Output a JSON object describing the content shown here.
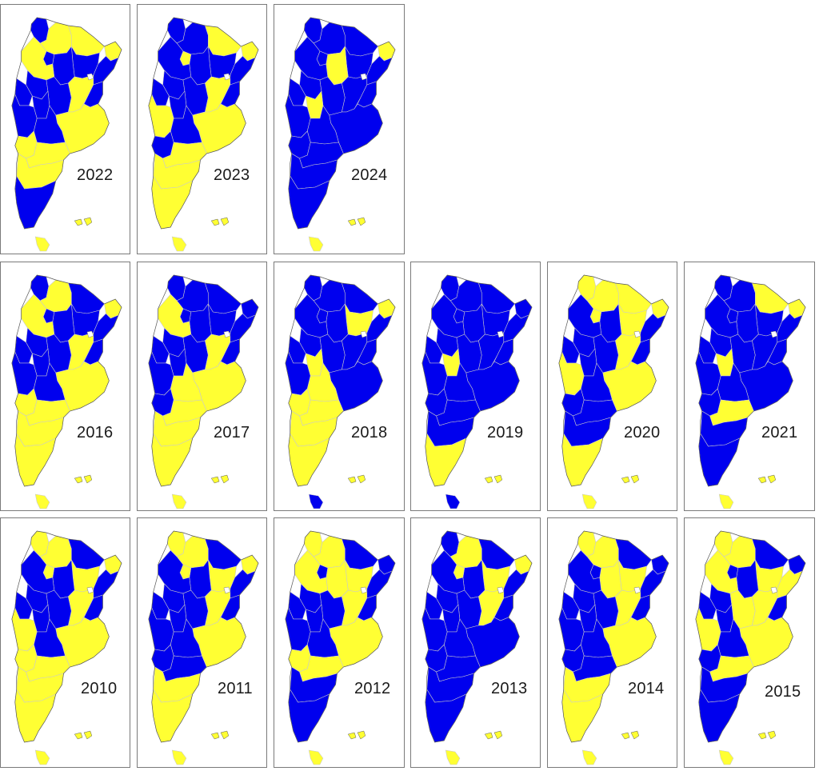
{
  "map_colors": {
    "blue": "#0000ee",
    "yellow": "#ffff33",
    "border": "#555555"
  },
  "panels": [
    {
      "year": "2022",
      "colors": [
        "b",
        "y",
        "y",
        "b",
        "y",
        "b",
        "b",
        "b",
        "y",
        "b",
        "b",
        "b",
        "y",
        "b",
        "b",
        "b",
        "y",
        "b",
        "y",
        "y",
        "y",
        "b",
        "y"
      ]
    },
    {
      "year": "2023",
      "colors": [
        "b",
        "b",
        "y",
        "b",
        "y",
        "b",
        "b",
        "y",
        "b",
        "b",
        "b",
        "b",
        "y",
        "b",
        "b",
        "y",
        "y",
        "b",
        "b",
        "y",
        "y",
        "y",
        "y"
      ]
    },
    {
      "year": "2024",
      "colors": [
        "b",
        "b",
        "b",
        "b",
        "y",
        "b",
        "y",
        "b",
        "b",
        "b",
        "b",
        "b",
        "b",
        "b",
        "y",
        "b",
        "b",
        "b",
        "b",
        "b",
        "b",
        "b",
        "y"
      ]
    },
    {
      "year": "2016",
      "colors": [
        "b",
        "y",
        "b",
        "b",
        "y",
        "b",
        "b",
        "b",
        "y",
        "b",
        "b",
        "b",
        "y",
        "b",
        "b",
        "b",
        "y",
        "b",
        "y",
        "y",
        "y",
        "y",
        "y"
      ]
    },
    {
      "year": "2017",
      "colors": [
        "b",
        "b",
        "b",
        "b",
        "b",
        "b",
        "b",
        "b",
        "y",
        "b",
        "b",
        "b",
        "y",
        "b",
        "b",
        "b",
        "y",
        "y",
        "b",
        "y",
        "y",
        "y",
        "y"
      ]
    },
    {
      "year": "2018",
      "colors": [
        "b",
        "b",
        "b",
        "y",
        "y",
        "b",
        "b",
        "b",
        "b",
        "b",
        "b",
        "b",
        "b",
        "b",
        "y",
        "b",
        "b",
        "y",
        "y",
        "y",
        "y",
        "y",
        "b"
      ]
    },
    {
      "year": "2019",
      "colors": [
        "b",
        "b",
        "b",
        "b",
        "b",
        "b",
        "b",
        "b",
        "b",
        "b",
        "b",
        "b",
        "b",
        "b",
        "y",
        "b",
        "b",
        "b",
        "b",
        "b",
        "b",
        "y",
        "b"
      ]
    },
    {
      "year": "2020",
      "colors": [
        "y",
        "y",
        "y",
        "y",
        "y",
        "b",
        "b",
        "y",
        "b",
        "b",
        "b",
        "b",
        "y",
        "b",
        "b",
        "y",
        "y",
        "b",
        "b",
        "b",
        "b",
        "y",
        "y"
      ]
    },
    {
      "year": "2021",
      "colors": [
        "b",
        "b",
        "y",
        "b",
        "y",
        "b",
        "b",
        "b",
        "b",
        "b",
        "b",
        "b",
        "b",
        "b",
        "y",
        "b",
        "b",
        "b",
        "b",
        "y",
        "b",
        "b",
        "y"
      ]
    },
    {
      "year": "2010",
      "colors": [
        "y",
        "y",
        "b",
        "y",
        "y",
        "b",
        "b",
        "y",
        "b",
        "b",
        "b",
        "b",
        "y",
        "b",
        "b",
        "y",
        "y",
        "b",
        "y",
        "y",
        "y",
        "y",
        "y"
      ]
    },
    {
      "year": "2011",
      "colors": [
        "y",
        "y",
        "b",
        "y",
        "y",
        "b",
        "b",
        "y",
        "b",
        "b",
        "b",
        "b",
        "y",
        "b",
        "b",
        "b",
        "y",
        "b",
        "b",
        "b",
        "y",
        "y",
        "y"
      ]
    },
    {
      "year": "2012",
      "colors": [
        "y",
        "y",
        "b",
        "y",
        "b",
        "b",
        "y",
        "b",
        "y",
        "b",
        "b",
        "b",
        "y",
        "b",
        "b",
        "b",
        "y",
        "b",
        "y",
        "y",
        "b",
        "b",
        "y"
      ]
    },
    {
      "year": "2013",
      "colors": [
        "b",
        "y",
        "b",
        "y",
        "y",
        "b",
        "b",
        "y",
        "b",
        "b",
        "b",
        "b",
        "y",
        "b",
        "b",
        "b",
        "b",
        "b",
        "b",
        "b",
        "b",
        "b",
        "y"
      ]
    },
    {
      "year": "2014",
      "colors": [
        "y",
        "y",
        "b",
        "y",
        "b",
        "b",
        "y",
        "b",
        "b",
        "b",
        "b",
        "b",
        "y",
        "b",
        "b",
        "b",
        "y",
        "b",
        "b",
        "b",
        "y",
        "y",
        "y"
      ]
    },
    {
      "year": "2015",
      "colors": [
        "y",
        "y",
        "b",
        "y",
        "b",
        "y",
        "b",
        "b",
        "y",
        "b",
        "b",
        "y",
        "y",
        "b",
        "b",
        "y",
        "y",
        "b",
        "b",
        "y",
        "b",
        "b",
        "y"
      ]
    }
  ]
}
